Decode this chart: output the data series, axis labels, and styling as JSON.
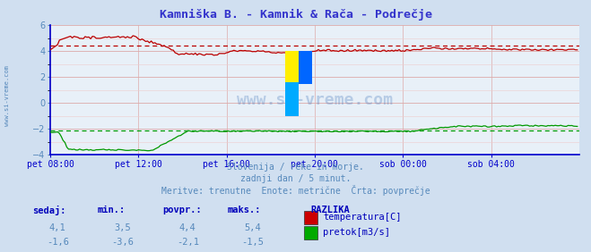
{
  "title": "Kamniška B. - Kamnik & Rača - Podrečje",
  "title_color": "#3333cc",
  "bg_color": "#d0dff0",
  "plot_bg_color": "#e8f0f8",
  "subtitle_lines": [
    "Slovenija / reke in morje.",
    "zadnji dan / 5 minut.",
    "Meritve: trenutne  Enote: metrične  Črta: povprečje"
  ],
  "subtitle_color": "#5588bb",
  "xlabel_color": "#5588bb",
  "axis_color": "#0000cc",
  "grid_color_major": "#ddaaaa",
  "grid_color_minor": "#eecccc",
  "temp_color": "#bb0000",
  "flow_color": "#009900",
  "watermark_color": "#4477bb",
  "watermark_text": "www.si-vreme.com",
  "x_labels": [
    "pet 08:00",
    "pet 12:00",
    "pet 16:00",
    "pet 20:00",
    "sob 00:00",
    "sob 04:00"
  ],
  "x_ticks_norm": [
    0.0,
    0.167,
    0.334,
    0.501,
    0.668,
    0.835
  ],
  "x_max": 288,
  "ylim": [
    -4.0,
    6.0
  ],
  "yticks": [
    -4,
    -2,
    0,
    2,
    4,
    6
  ],
  "temp_avg": 4.4,
  "flow_avg": -2.1,
  "legend_header": "RAZLIKA",
  "legend_items": [
    {
      "label": "temperatura[C]",
      "color": "#cc0000"
    },
    {
      "label": "pretok[m3/s]",
      "color": "#00aa00"
    }
  ],
  "table_headers": [
    "sedaj:",
    "min.:",
    "povpr.:",
    "maks.:"
  ],
  "table_rows": [
    [
      "4,1",
      "3,5",
      "4,4",
      "5,4"
    ],
    [
      "-1,6",
      "-3,6",
      "-2,1",
      "-1,5"
    ]
  ],
  "table_color": "#0000bb",
  "sidebar_text": "www.si-vreme.com",
  "sidebar_color": "#5588bb"
}
